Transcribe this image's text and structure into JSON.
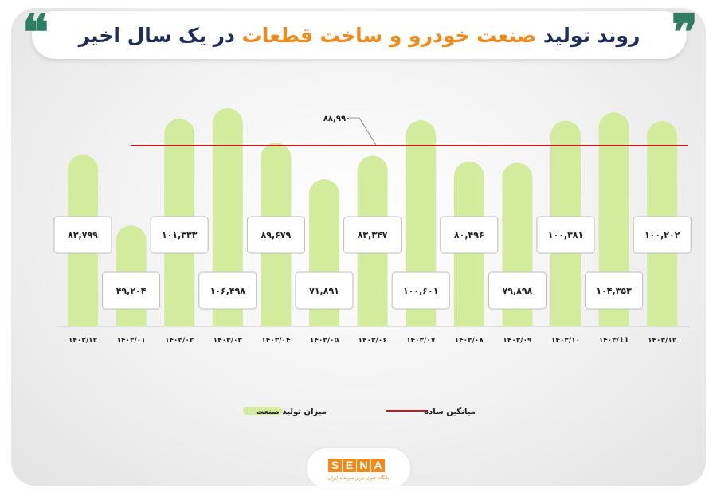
{
  "header": {
    "title_part1": "روند تولید",
    "title_highlight": "صنعت خودرو و ساخت قطعات",
    "title_part2": "در یک سال اخیر",
    "quote_glyph": "❝",
    "quote_glyph_close": "❞"
  },
  "footer": {
    "logo_letters": [
      "S",
      "E",
      "N",
      "A"
    ],
    "logo_tagline": "پایگاه خبری بازار سرمایه ایران"
  },
  "colors": {
    "bar": "#d2eb9c",
    "average_line": "#c41a1a",
    "title_text": "#1f2f57",
    "highlight": "#f08a1c",
    "quote": "#2f7d62"
  },
  "chart_data": {
    "type": "bar",
    "categories": [
      "۱۴۰۲/۱۲",
      "۱۴۰۳/۰۱",
      "۱۴۰۳/۰۲",
      "۱۴۰۳/۰۳",
      "۱۴۰۳/۰۴",
      "۱۴۰۳/۰۵",
      "۱۴۰۳/۰۶",
      "۱۴۰۳/۰۷",
      "۱۴۰۳/۰۸",
      "۱۴۰۳/۰۹",
      "۱۴۰۳/۱۰",
      "۱۴۰۳/11",
      "۱۴۰۳/۱۲"
    ],
    "series": [
      {
        "name": "میزان تولید صنعت",
        "values": [
          83799,
          49204,
          101333,
          106498,
          89679,
          71891,
          83347,
          100601,
          80496,
          79898,
          100381,
          104353,
          100202
        ],
        "labels": [
          "۸۳,۷۹۹",
          "۴۹,۲۰۴",
          "۱۰۱,۳۳۳",
          "۱۰۶,۴۹۸",
          "۸۹,۶۷۹",
          "۷۱,۸۹۱",
          "۸۳,۳۴۷",
          "۱۰۰,۶۰۱",
          "۸۰,۴۹۶",
          "۷۹,۸۹۸",
          "۱۰۰,۳۸۱",
          "۱۰۴,۳۵۳",
          "۱۰۰,۲۰۲"
        ]
      }
    ],
    "average": {
      "name": "میانگین ساده",
      "value": 88990,
      "label": "۸۸,۹۹۰"
    },
    "legend": [
      "میزان تولید صنعت",
      "میانگین ساده"
    ],
    "legend_position": "bottom",
    "ylim": [
      0,
      108000
    ],
    "grid": false,
    "title": "روند تولید صنعت خودرو و ساخت قطعات در یک سال اخیر"
  }
}
